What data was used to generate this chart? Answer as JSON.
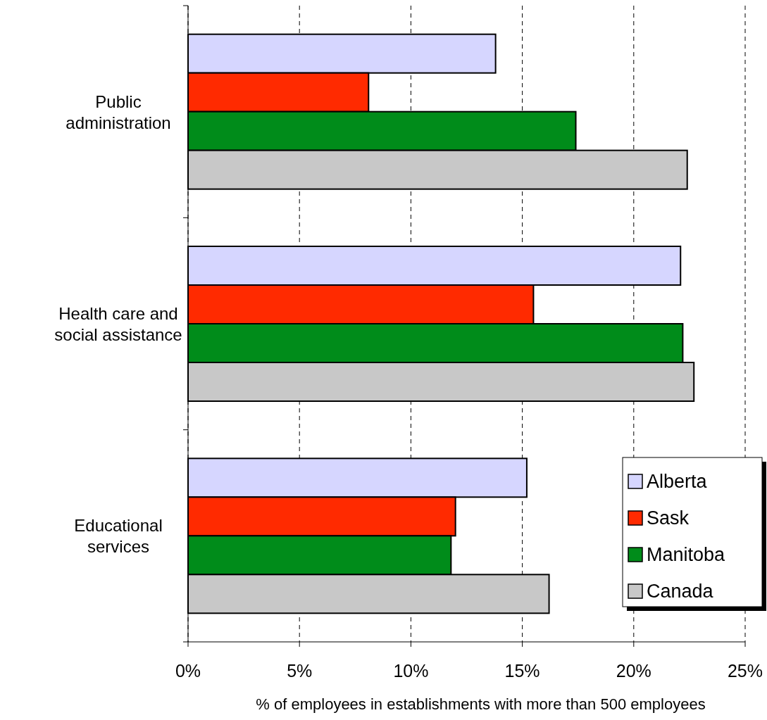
{
  "chart_data": {
    "type": "bar",
    "orientation": "horizontal",
    "xlabel": "% of employees in establishments with more than 500 employees",
    "categories": [
      "Public administration",
      "Health care and social assistance",
      "Educational services"
    ],
    "series": [
      {
        "name": "Alberta",
        "color": "#d6d6ff",
        "values": [
          13.8,
          22.1,
          15.2
        ]
      },
      {
        "name": "Sask",
        "color": "#ff2a00",
        "values": [
          8.1,
          15.5,
          12.0
        ]
      },
      {
        "name": "Manitoba",
        "color": "#008c1a",
        "values": [
          17.4,
          22.2,
          11.8
        ]
      },
      {
        "name": "Canada",
        "color": "#c8c8c8",
        "values": [
          22.4,
          22.7,
          16.2
        ]
      }
    ],
    "xlim": [
      0,
      25
    ],
    "xticks": [
      {
        "value": 0,
        "label": "0%"
      },
      {
        "value": 5,
        "label": "5%"
      },
      {
        "value": 10,
        "label": "10%"
      },
      {
        "value": 15,
        "label": "15%"
      },
      {
        "value": 20,
        "label": "20%"
      },
      {
        "value": 25,
        "label": "25%"
      }
    ],
    "grid": "x",
    "legend": "bottom right"
  }
}
